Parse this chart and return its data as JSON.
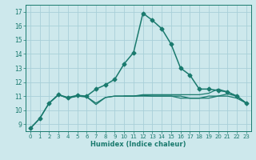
{
  "xlabel": "Humidex (Indice chaleur)",
  "bg_color": "#cde8ec",
  "grid_color": "#a8d0d8",
  "line_color": "#1a7a6e",
  "xlim": [
    -0.5,
    23.5
  ],
  "ylim": [
    8.5,
    17.5
  ],
  "xticks": [
    0,
    1,
    2,
    3,
    4,
    5,
    6,
    7,
    8,
    9,
    10,
    11,
    12,
    13,
    14,
    15,
    16,
    17,
    18,
    19,
    20,
    21,
    22,
    23
  ],
  "yticks": [
    9,
    10,
    11,
    12,
    13,
    14,
    15,
    16,
    17
  ],
  "series": [
    {
      "x": [
        0,
        1,
        2,
        3,
        4,
        5,
        6,
        7,
        8,
        9,
        10,
        11,
        12,
        13,
        14,
        15,
        16,
        17,
        18,
        19,
        20,
        21,
        22,
        23
      ],
      "y": [
        8.7,
        9.4,
        10.5,
        11.1,
        10.9,
        11.05,
        11.0,
        11.5,
        11.8,
        12.2,
        13.3,
        14.1,
        16.9,
        16.4,
        15.8,
        14.7,
        13.0,
        12.5,
        11.5,
        11.5,
        11.4,
        11.3,
        11.0,
        10.5
      ],
      "marker": "D",
      "markersize": 2.5,
      "linewidth": 1.1
    },
    {
      "x": [
        0,
        1,
        2,
        3,
        4,
        5,
        6,
        7,
        8,
        9,
        10,
        11,
        12,
        13,
        14,
        15,
        16,
        17,
        18,
        19,
        20,
        21,
        22,
        23
      ],
      "y": [
        8.7,
        9.4,
        10.5,
        11.1,
        10.85,
        11.0,
        10.95,
        10.5,
        10.9,
        11.0,
        11.0,
        11.0,
        11.05,
        11.0,
        11.0,
        11.0,
        10.85,
        10.85,
        10.85,
        11.0,
        11.0,
        11.0,
        10.85,
        10.5
      ],
      "marker": null,
      "linewidth": 0.9
    },
    {
      "x": [
        2,
        3,
        4,
        5,
        6,
        7,
        8,
        9,
        10,
        11,
        12,
        13,
        14,
        15,
        16,
        17,
        18,
        19,
        20,
        21,
        22,
        23
      ],
      "y": [
        10.5,
        11.1,
        10.85,
        11.0,
        10.95,
        10.4,
        10.9,
        11.0,
        11.0,
        11.0,
        11.0,
        11.0,
        11.0,
        11.0,
        11.0,
        10.85,
        10.85,
        10.85,
        11.0,
        11.15,
        11.0,
        10.5
      ],
      "marker": null,
      "linewidth": 0.9
    },
    {
      "x": [
        10,
        11,
        12,
        13,
        14,
        15,
        16,
        17,
        18,
        19,
        20,
        21,
        22,
        23
      ],
      "y": [
        11.0,
        11.0,
        11.1,
        11.1,
        11.1,
        11.1,
        11.1,
        11.1,
        11.1,
        11.2,
        11.5,
        11.3,
        11.0,
        10.5
      ],
      "marker": null,
      "linewidth": 0.9
    }
  ]
}
